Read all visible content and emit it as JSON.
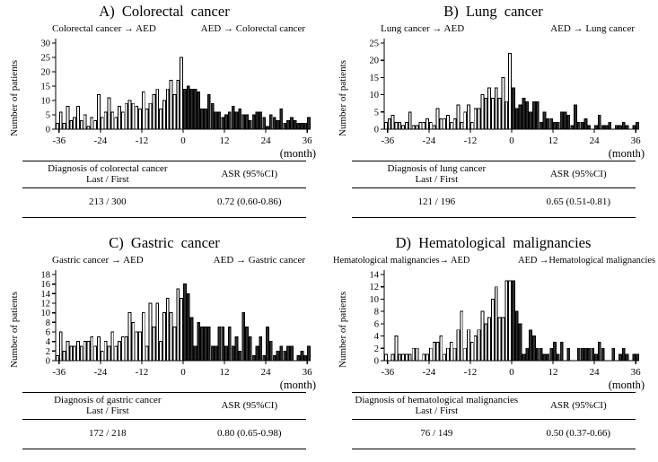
{
  "panels": [
    {
      "table": {
        "diagnosis_header": "Diagnosis of colorectal cancer",
        "subheader": "Last / First",
        "asr_header": "ASR (95%CI)",
        "counts": "213 / 300",
        "asr": "0.72 (0.60-0.86)"
      }
    },
    {
      "table": {
        "diagnosis_header": "Diagnosis of lung cancer",
        "subheader": "Last / First",
        "asr_header": "ASR (95%CI)",
        "counts": "121 / 196",
        "asr": "0.65 (0.51-0.81)"
      }
    },
    {
      "table": {
        "diagnosis_header": "Diagnosis of gastric cancer",
        "subheader": "Last / First",
        "asr_header": "ASR (95%CI)",
        "counts": "172 / 218",
        "asr": "0.80 (0.65-0.98)"
      }
    },
    {
      "table": {
        "diagnosis_header": "Diagnosis of hematological malignancies",
        "subheader": "Last / First",
        "asr_header": "ASR (95%CI)",
        "counts": "76 / 149",
        "asr": "0.50 (0.37-0.66)"
      }
    }
  ],
  "chart_data": [
    {
      "type": "bar",
      "title": "A) Colorectal cancer",
      "ylabel": "Number of patients",
      "xlabel": "(month)",
      "ylim": [
        0,
        30
      ],
      "ytick_step": 5,
      "xticks": [
        -36,
        -24,
        -12,
        0,
        12,
        24,
        36
      ],
      "bar_colors": {
        "open": "#ffffff",
        "filled": "#2d2d2d"
      },
      "series": [
        {
          "name": "Colorectal cancer → AED",
          "style": "open",
          "start_month": -37,
          "values": [
            2,
            6,
            2,
            8,
            3,
            4,
            8,
            3,
            5,
            1,
            4,
            3,
            12,
            4,
            6,
            11,
            6,
            4,
            8,
            6,
            9,
            10,
            9,
            8,
            7,
            13,
            7,
            9,
            12,
            14,
            7,
            10,
            14,
            17,
            12,
            17,
            25
          ]
        },
        {
          "name": "AED → Colorectal cancer",
          "style": "filled",
          "start_month": 0,
          "values": [
            14,
            15,
            14,
            14,
            13,
            7,
            7,
            12,
            9,
            6,
            6,
            4,
            5,
            6,
            8,
            6,
            7,
            5,
            5,
            3,
            5,
            6,
            6,
            4,
            1,
            5,
            4,
            3,
            7,
            2,
            3,
            4,
            3,
            2,
            2,
            2,
            4
          ]
        }
      ]
    },
    {
      "type": "bar",
      "title": "B) Lung cancer",
      "ylabel": "Number of patients",
      "xlabel": "(month)",
      "ylim": [
        0,
        25
      ],
      "ytick_step": 5,
      "xticks": [
        -36,
        -24,
        -12,
        0,
        12,
        24,
        36
      ],
      "bar_colors": {
        "open": "#ffffff",
        "filled": "#2d2d2d"
      },
      "series": [
        {
          "name": "Lung cancer → AED",
          "style": "open",
          "start_month": -37,
          "values": [
            2,
            3,
            4,
            2,
            2,
            1,
            2,
            5,
            1,
            1,
            2,
            2,
            3,
            2,
            1,
            6,
            3,
            3,
            4,
            2,
            3,
            7,
            2,
            5,
            7,
            2,
            6,
            6,
            10,
            9,
            12,
            9,
            12,
            9,
            15,
            8,
            22
          ]
        },
        {
          "name": "AED → Lung cancer",
          "style": "filled",
          "start_month": 0,
          "values": [
            12,
            6,
            7,
            9,
            8,
            5,
            8,
            8,
            2,
            5,
            3,
            3,
            2,
            2,
            5,
            5,
            4,
            1,
            7,
            2,
            2,
            3,
            1,
            0,
            1,
            4,
            1,
            1,
            2,
            0,
            1,
            1,
            2,
            1,
            0,
            1,
            2
          ]
        }
      ]
    },
    {
      "type": "bar",
      "title": "C) Gastric cancer",
      "ylabel": "Number of patients",
      "xlabel": "(month)",
      "ylim": [
        0,
        18
      ],
      "ytick_step": 2,
      "xticks": [
        -36,
        -24,
        -12,
        0,
        12,
        24,
        36
      ],
      "bar_colors": {
        "open": "#ffffff",
        "filled": "#2d2d2d"
      },
      "series": [
        {
          "name": "Gastric cancer → AED",
          "style": "open",
          "start_month": -37,
          "values": [
            1,
            6,
            2,
            4,
            3,
            3,
            4,
            3,
            4,
            4,
            5,
            3,
            5,
            2,
            4,
            3,
            6,
            3,
            4,
            5,
            5,
            10,
            8,
            6,
            6,
            10,
            3,
            12,
            7,
            12,
            4,
            10,
            13,
            10,
            7,
            15,
            13
          ]
        },
        {
          "name": "AED → Gastric cancer",
          "style": "filled",
          "start_month": 0,
          "values": [
            16,
            14,
            9,
            3,
            8,
            7,
            7,
            7,
            3,
            3,
            7,
            7,
            3,
            7,
            3,
            5,
            2,
            10,
            7,
            5,
            1,
            3,
            5,
            1,
            7,
            4,
            1,
            2,
            3,
            2,
            3,
            3,
            0,
            1,
            2,
            1,
            3
          ]
        }
      ]
    },
    {
      "type": "bar",
      "title": "D) Hematological malignancies",
      "ylabel": "Number of patients",
      "xlabel": "(month)",
      "ylim": [
        0,
        14
      ],
      "ytick_step": 2,
      "xticks": [
        -36,
        -24,
        -12,
        0,
        12,
        24,
        36
      ],
      "bar_colors": {
        "open": "#ffffff",
        "filled": "#2d2d2d"
      },
      "series": [
        {
          "name": "Hematological malignancies→ AED",
          "style": "open",
          "start_month": -37,
          "values": [
            1,
            0,
            1,
            4,
            1,
            1,
            1,
            1,
            2,
            2,
            0,
            1,
            1,
            2,
            3,
            3,
            4,
            1,
            2,
            3,
            2,
            5,
            8,
            2,
            5,
            3,
            4,
            5,
            8,
            6,
            7,
            10,
            12,
            7,
            7,
            13,
            13
          ]
        },
        {
          "name": "AED →Hematological malignancies",
          "style": "filled",
          "start_month": 0,
          "values": [
            13,
            8,
            6,
            1,
            2,
            5,
            4,
            2,
            2,
            1,
            1,
            2,
            3,
            1,
            3,
            0,
            2,
            0,
            0,
            2,
            2,
            2,
            2,
            2,
            1,
            3,
            2,
            0,
            0,
            2,
            0,
            1,
            2,
            1,
            0,
            1,
            1
          ]
        }
      ]
    }
  ]
}
